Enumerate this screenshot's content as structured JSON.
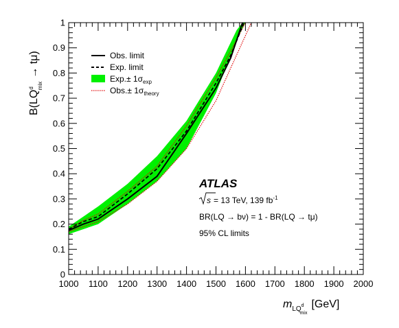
{
  "chart_data": {
    "type": "line",
    "experiment_label": "ATLAS",
    "annotations": {
      "energy_sqrt": "s",
      "energy_rest": "= 13 TeV, 139 fb",
      "energy_sup": "-1",
      "br_relation": "BR(LQ → bν) = 1 - BR(LQ → tμ)",
      "cl": "95% CL limits"
    },
    "xlabel": {
      "symbol": "m",
      "sub": "LQ",
      "subsup": "d",
      "subsub": "mix",
      "unit": "[GeV]"
    },
    "ylabel": {
      "main": "B(LQ",
      "sup": "d",
      "sub": "mix",
      "tail": "→ tμ)"
    },
    "xlim": [
      1000,
      2000
    ],
    "ylim": [
      0,
      1
    ],
    "xticks": [
      "1000",
      "1100",
      "1200",
      "1300",
      "1400",
      "1500",
      "1600",
      "1700",
      "1800",
      "1900",
      "2000"
    ],
    "yticks": [
      "0",
      "0.1",
      "0.2",
      "0.3",
      "0.4",
      "0.5",
      "0.6",
      "0.7",
      "0.8",
      "0.9",
      "1"
    ],
    "legend_position": "top-left",
    "legend": [
      {
        "key": "obs",
        "label": "Obs. limit",
        "style": "solid"
      },
      {
        "key": "exp",
        "label": "Exp. limit",
        "style": "dashed"
      },
      {
        "key": "band",
        "label": "Exp.± 1σ",
        "sub": "exp",
        "style": "band"
      },
      {
        "key": "theory",
        "label": "Obs.± 1σ",
        "sub": "theory",
        "style": "dotted"
      }
    ],
    "colors": {
      "band": "#00f000",
      "theory": "#e00000",
      "lines": "#000000"
    },
    "series": {
      "band_upper": {
        "x": [
          1000,
          1100,
          1200,
          1300,
          1400,
          1500,
          1570,
          1590
        ],
        "y": [
          0.19,
          0.27,
          0.36,
          0.47,
          0.61,
          0.8,
          0.97,
          1.0
        ]
      },
      "band_lower": {
        "x": [
          1000,
          1100,
          1200,
          1300,
          1400,
          1500,
          1570,
          1600
        ],
        "y": [
          0.16,
          0.2,
          0.28,
          0.37,
          0.5,
          0.72,
          0.93,
          1.0
        ]
      },
      "obs": {
        "x": [
          1000,
          1050,
          1100,
          1200,
          1300,
          1400,
          1500,
          1550,
          1590
        ],
        "y": [
          0.175,
          0.2,
          0.22,
          0.3,
          0.39,
          0.56,
          0.74,
          0.86,
          1.0
        ]
      },
      "exp": {
        "x": [
          1000,
          1050,
          1100,
          1200,
          1300,
          1400,
          1500,
          1550,
          1595
        ],
        "y": [
          0.18,
          0.21,
          0.23,
          0.32,
          0.42,
          0.57,
          0.76,
          0.87,
          1.0
        ]
      },
      "theory_upper": {
        "x": [
          1000,
          1050,
          1100,
          1200,
          1300,
          1400,
          1500,
          1560,
          1600
        ],
        "y": [
          0.18,
          0.215,
          0.24,
          0.33,
          0.43,
          0.59,
          0.78,
          0.91,
          1.0
        ]
      },
      "theory_lower": {
        "x": [
          1000,
          1050,
          1100,
          1200,
          1300,
          1400,
          1500,
          1550,
          1620
        ],
        "y": [
          0.17,
          0.19,
          0.21,
          0.28,
          0.37,
          0.5,
          0.69,
          0.82,
          1.0
        ]
      }
    }
  }
}
